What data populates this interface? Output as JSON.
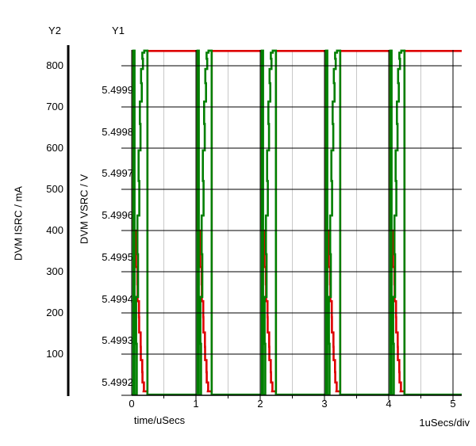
{
  "titles": {
    "y2": "Y2",
    "y1": "Y1"
  },
  "y2_axis": {
    "label": "DVM ISRC / mA",
    "ticks": [
      "800",
      "700",
      "600",
      "500",
      "400",
      "300",
      "200",
      "100"
    ]
  },
  "y1_axis": {
    "label": "DVM VSRC / V",
    "ticks": [
      "5.4999",
      "5.4998",
      "5.4997",
      "5.4996",
      "5.4995",
      "5.4994",
      "5.4993",
      "5.4992"
    ]
  },
  "x_axis": {
    "ticks": [
      "0",
      "1",
      "2",
      "3",
      "4",
      "5"
    ],
    "label": "time/uSecs",
    "scale_label": "1uSecs/div"
  },
  "chart_data": {
    "type": "line",
    "title": "",
    "x_axis": {
      "label": "time/uSecs",
      "units_per_div": "1uSecs/div",
      "range_us": [
        0,
        5.13
      ],
      "major_tick_us": [
        0,
        1,
        2,
        3,
        4,
        5
      ],
      "minor_tick_step_us": 0.5,
      "grid": "on"
    },
    "y_axes": [
      {
        "id": "Y1",
        "label": "DVM VSRC / V",
        "tick_values": [
          5.4999,
          5.4998,
          5.4997,
          5.4996,
          5.4995,
          5.4994,
          5.4993,
          5.4992
        ],
        "top_value": 5.5,
        "bottom_value": 5.49917
      },
      {
        "id": "Y2",
        "label": "DVM ISRC / mA",
        "tick_values": [
          800,
          700,
          600,
          500,
          400,
          300,
          200,
          100
        ],
        "top_value": 838,
        "bottom_value": 0
      }
    ],
    "series": [
      {
        "name": "DVM VSRC",
        "axis": "Y1",
        "color": "#007f00",
        "shape": "Flat low ~5.49917 V for most of each period; narrow full-height spike to ~5.50000 V at each integer microsecond; staircase recovery ramp from 5.49917 V to 5.50000 V during t = k+0.06 .. k+0.185 us; drops back to low at t = k+0.245 us"
      },
      {
        "name": "DVM ISRC",
        "axis": "Y2",
        "color": "#dd0000",
        "shape": "Flat high ~836 mA for most of each period; steps down to ~400 mA at each integer microsecond; staircase decay from 400 mA to ~0 mA during t = k+0.045 .. k+0.185 us; jumps back to high at t = k+0.245 us"
      }
    ],
    "waveform": {
      "period_us": 1.0,
      "num_periods": 5,
      "event_offset_us": 0.025,
      "vsrc": {
        "high_V": 5.499995,
        "low_V": 5.499171,
        "ramp_start_us": 0.06,
        "ramp_end_us": 0.185,
        "drop_us": 0.245
      },
      "isrc": {
        "high_mA": 836,
        "drop_to_mA": 400,
        "low_mA": 14,
        "decay_start_us": 0.045,
        "decay_end_us": 0.185,
        "rise_us": 0.245
      }
    },
    "legend": "none",
    "grid_colors": {
      "major": "#000000",
      "minor": "#c8c8c8"
    }
  }
}
